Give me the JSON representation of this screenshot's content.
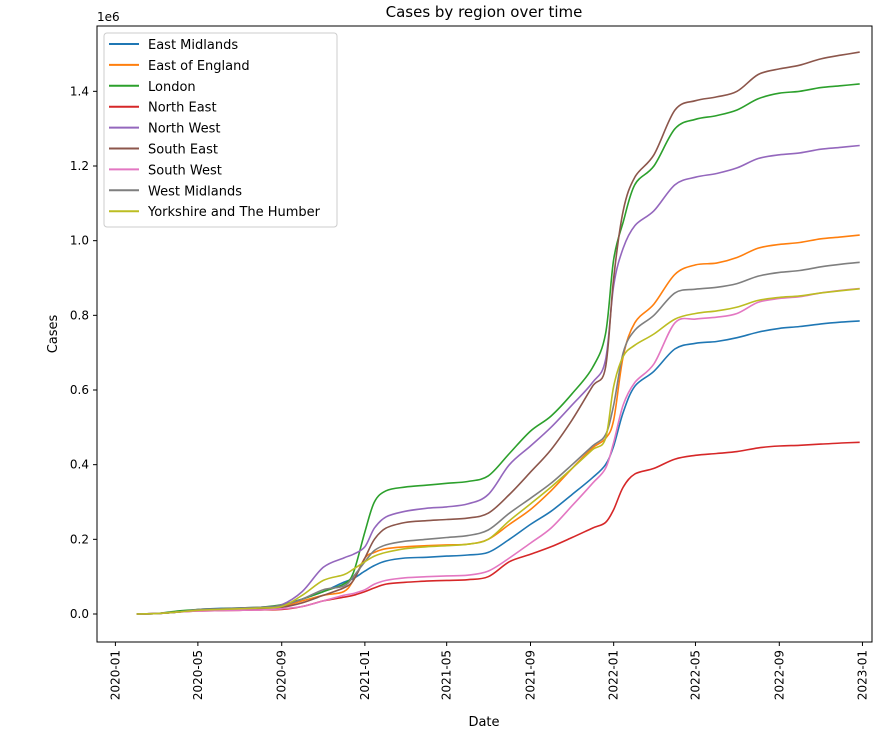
{
  "chart_data": {
    "type": "line",
    "title": "Cases by region over time",
    "xlabel": "Date",
    "ylabel": "Cases",
    "y_multiplier_label": "1e6",
    "x_ticks": [
      "2020-01",
      "2020-05",
      "2020-09",
      "2021-01",
      "2021-05",
      "2021-09",
      "2022-01",
      "2022-05",
      "2022-09",
      "2023-01"
    ],
    "y_ticks": [
      "0.0",
      "0.2",
      "0.4",
      "0.6",
      "0.8",
      "1.0",
      "1.2",
      "1.4"
    ],
    "xlim": [
      "2019-12-05",
      "2023-01-15"
    ],
    "ylim": [
      -75000,
      1575000
    ],
    "grid": false,
    "legend_position": "top-left",
    "x": [
      "2020-02-01",
      "2020-03-01",
      "2020-04-01",
      "2020-05-01",
      "2020-06-01",
      "2020-07-01",
      "2020-08-01",
      "2020-09-01",
      "2020-10-01",
      "2020-11-01",
      "2020-12-01",
      "2020-12-15",
      "2021-01-01",
      "2021-01-15",
      "2021-02-01",
      "2021-03-01",
      "2021-04-01",
      "2021-05-01",
      "2021-06-01",
      "2021-07-01",
      "2021-08-01",
      "2021-09-01",
      "2021-10-01",
      "2021-11-01",
      "2021-12-01",
      "2021-12-20",
      "2022-01-01",
      "2022-01-15",
      "2022-02-01",
      "2022-03-01",
      "2022-04-01",
      "2022-05-01",
      "2022-06-01",
      "2022-07-01",
      "2022-08-01",
      "2022-09-01",
      "2022-10-01",
      "2022-11-01",
      "2022-12-01",
      "2022-12-28"
    ],
    "series": [
      {
        "name": "East Midlands",
        "color": "#1f77b4",
        "values": [
          0,
          1000,
          5000,
          12000,
          15000,
          16000,
          18000,
          22000,
          40000,
          60000,
          85000,
          95000,
          115000,
          130000,
          142000,
          150000,
          152000,
          155000,
          158000,
          165000,
          200000,
          240000,
          275000,
          320000,
          365000,
          400000,
          450000,
          540000,
          610000,
          650000,
          710000,
          725000,
          730000,
          740000,
          755000,
          765000,
          770000,
          777000,
          782000,
          785000
        ]
      },
      {
        "name": "East of England",
        "color": "#ff7f0e",
        "values": [
          0,
          1000,
          5000,
          10000,
          12000,
          14000,
          16000,
          20000,
          35000,
          50000,
          60000,
          90000,
          150000,
          165000,
          175000,
          180000,
          183000,
          185000,
          187000,
          200000,
          240000,
          280000,
          330000,
          390000,
          445000,
          470000,
          520000,
          690000,
          780000,
          830000,
          910000,
          935000,
          940000,
          955000,
          980000,
          990000,
          995000,
          1005000,
          1010000,
          1015000
        ]
      },
      {
        "name": "London",
        "color": "#2ca02c",
        "values": [
          0,
          1000,
          8000,
          12000,
          14000,
          16000,
          18000,
          25000,
          40000,
          60000,
          80000,
          110000,
          220000,
          300000,
          330000,
          340000,
          345000,
          350000,
          355000,
          370000,
          430000,
          490000,
          530000,
          590000,
          660000,
          750000,
          950000,
          1050000,
          1150000,
          1200000,
          1300000,
          1325000,
          1335000,
          1350000,
          1380000,
          1395000,
          1400000,
          1410000,
          1415000,
          1420000
        ]
      },
      {
        "name": "North East",
        "color": "#d62728",
        "values": [
          0,
          1000,
          5000,
          8000,
          9000,
          10000,
          11000,
          12000,
          20000,
          35000,
          45000,
          50000,
          60000,
          70000,
          80000,
          85000,
          88000,
          90000,
          92000,
          100000,
          140000,
          160000,
          180000,
          205000,
          230000,
          245000,
          280000,
          340000,
          375000,
          390000,
          415000,
          425000,
          430000,
          435000,
          445000,
          450000,
          452000,
          455000,
          458000,
          460000
        ]
      },
      {
        "name": "North West",
        "color": "#9467bd",
        "values": [
          0,
          1000,
          5000,
          10000,
          13000,
          15000,
          17000,
          25000,
          60000,
          125000,
          150000,
          160000,
          180000,
          230000,
          260000,
          275000,
          283000,
          287000,
          295000,
          320000,
          400000,
          450000,
          500000,
          560000,
          620000,
          680000,
          880000,
          980000,
          1040000,
          1080000,
          1150000,
          1170000,
          1180000,
          1195000,
          1220000,
          1230000,
          1235000,
          1245000,
          1250000,
          1255000
        ]
      },
      {
        "name": "South East",
        "color": "#8c564b",
        "values": [
          0,
          1000,
          5000,
          10000,
          12000,
          14000,
          15000,
          18000,
          30000,
          50000,
          70000,
          90000,
          150000,
          200000,
          230000,
          245000,
          250000,
          253000,
          257000,
          270000,
          320000,
          380000,
          440000,
          520000,
          610000,
          660000,
          900000,
          1080000,
          1170000,
          1230000,
          1350000,
          1375000,
          1385000,
          1400000,
          1445000,
          1460000,
          1470000,
          1487000,
          1497000,
          1505000
        ]
      },
      {
        "name": "South West",
        "color": "#e377c2",
        "values": [
          0,
          1000,
          5000,
          8000,
          9000,
          10000,
          11000,
          14000,
          20000,
          35000,
          50000,
          55000,
          65000,
          80000,
          90000,
          97000,
          100000,
          102000,
          104000,
          115000,
          150000,
          190000,
          230000,
          290000,
          350000,
          390000,
          460000,
          560000,
          620000,
          670000,
          780000,
          790000,
          795000,
          805000,
          835000,
          845000,
          850000,
          860000,
          867000,
          872000
        ]
      },
      {
        "name": "West Midlands",
        "color": "#7f7f7f",
        "values": [
          0,
          1000,
          5000,
          12000,
          14000,
          16000,
          18000,
          23000,
          40000,
          65000,
          75000,
          100000,
          140000,
          170000,
          185000,
          195000,
          200000,
          205000,
          210000,
          225000,
          270000,
          310000,
          350000,
          400000,
          450000,
          480000,
          560000,
          700000,
          760000,
          800000,
          860000,
          870000,
          875000,
          885000,
          905000,
          915000,
          920000,
          930000,
          937000,
          942000
        ]
      },
      {
        "name": "Yorkshire and The Humber",
        "color": "#bcbd22",
        "values": [
          0,
          1000,
          5000,
          10000,
          12000,
          14000,
          16000,
          20000,
          50000,
          90000,
          105000,
          120000,
          140000,
          155000,
          165000,
          175000,
          180000,
          183000,
          187000,
          200000,
          250000,
          295000,
          340000,
          390000,
          440000,
          470000,
          610000,
          690000,
          720000,
          750000,
          790000,
          805000,
          812000,
          822000,
          840000,
          848000,
          852000,
          860000,
          866000,
          871000
        ]
      }
    ]
  }
}
